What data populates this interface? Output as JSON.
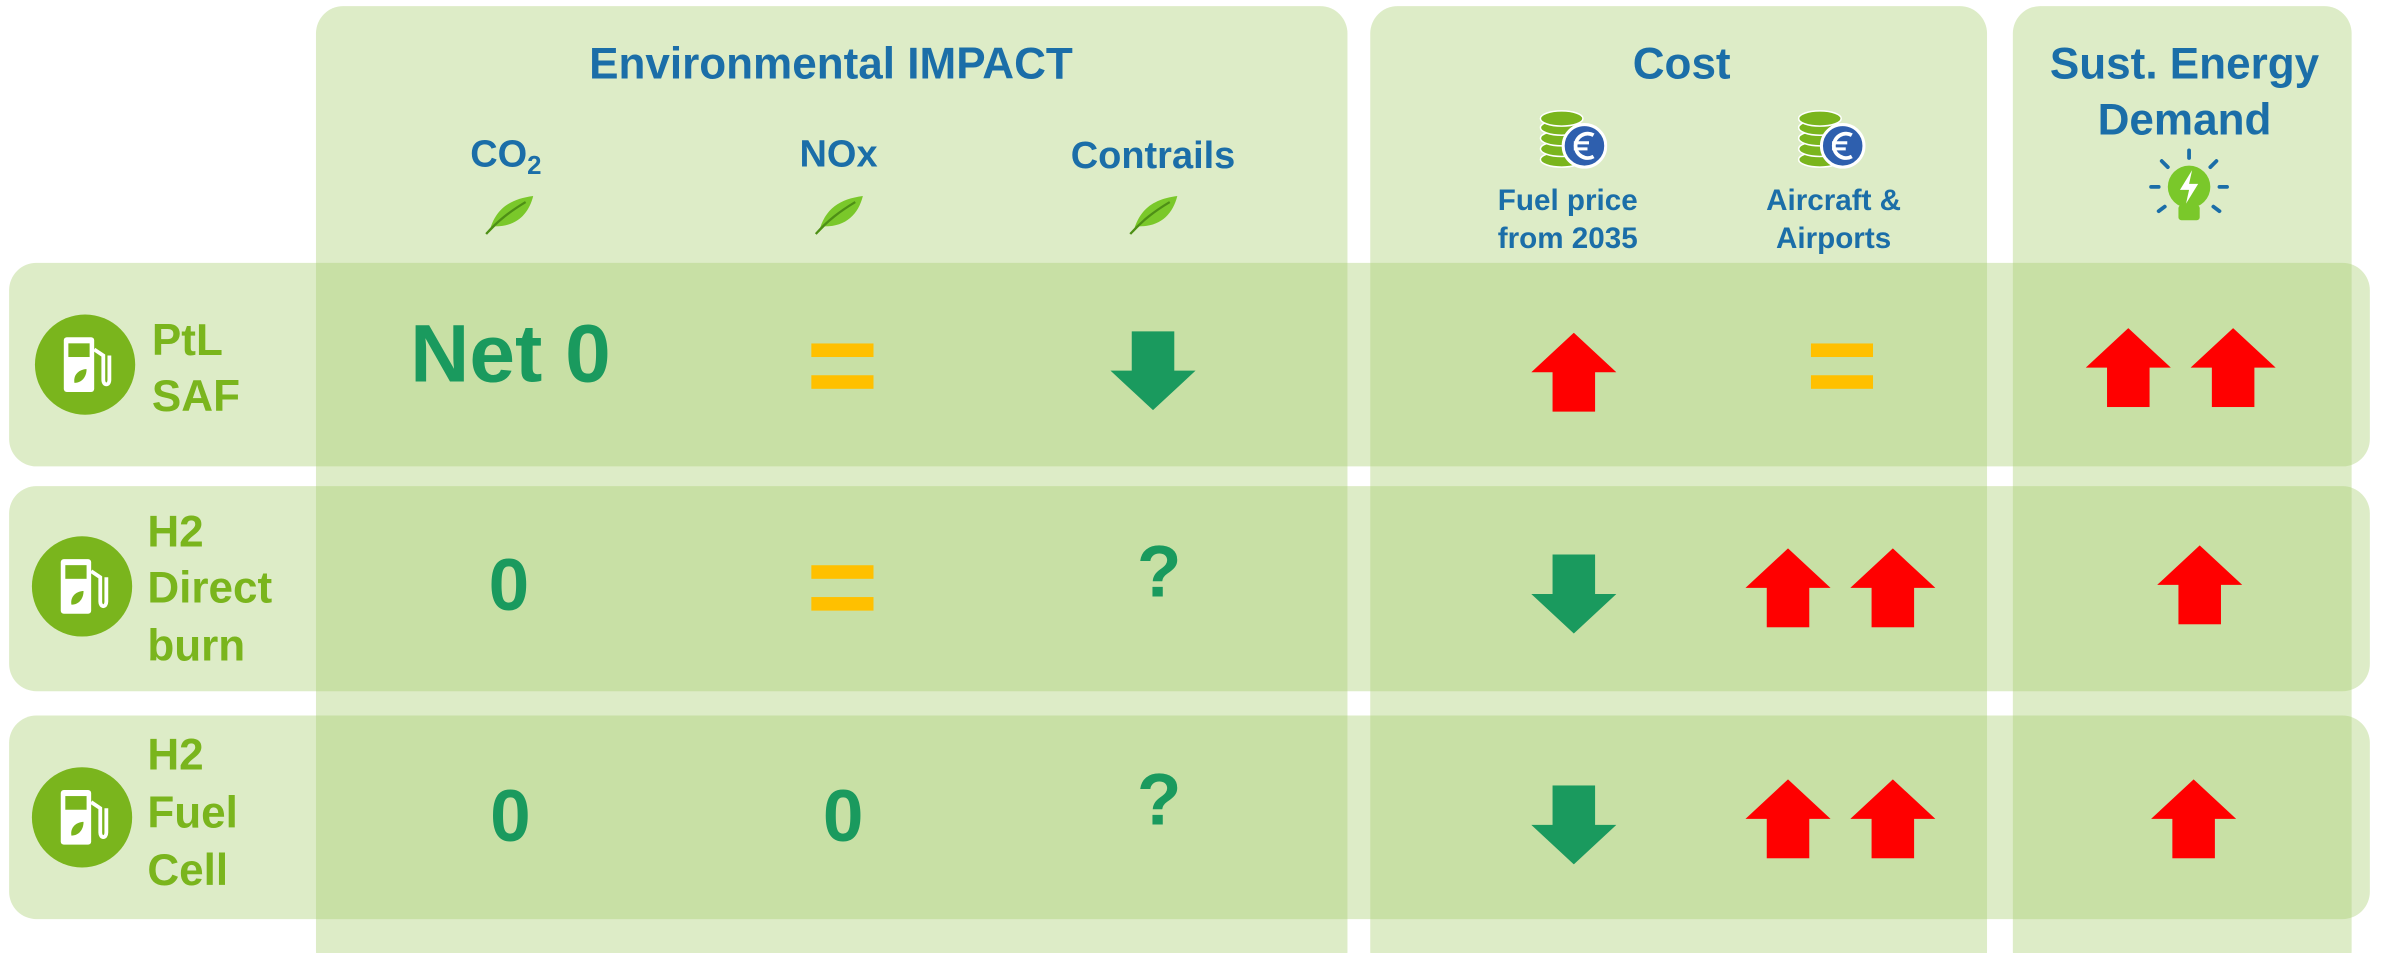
{
  "headers": {
    "environmental": "Environmental IMPACT",
    "cost": "Cost",
    "energy": [
      "Sust. Energy",
      "Demand"
    ]
  },
  "columns": {
    "co2": {
      "label": "CO",
      "subscript": "2"
    },
    "nox": "NOx",
    "contrails": "Contrails",
    "fuel_price": [
      "Fuel price",
      "from 2035"
    ],
    "aircraft": [
      "Aircraft &",
      "Airports"
    ]
  },
  "rows": [
    {
      "label": [
        "PtL",
        "SAF"
      ],
      "co2": "Net 0"
    },
    {
      "label": [
        "H2",
        "Direct",
        "burn"
      ],
      "co2": 0,
      "contrails": "?"
    },
    {
      "label": [
        "H2",
        "Fuel",
        "Cell"
      ],
      "co2": 0,
      "nox": 0,
      "contrails": "?"
    }
  ]
}
